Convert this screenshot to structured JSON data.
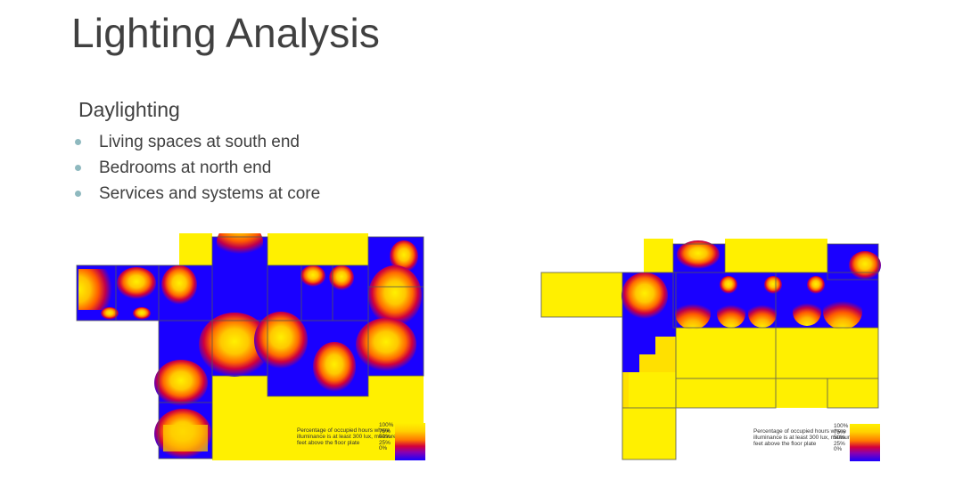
{
  "slide": {
    "title": "Lighting Analysis",
    "subtitle": "Daylighting",
    "bullets": [
      "Living spaces at south end",
      "Bedrooms at north end",
      "Services and systems at core"
    ]
  },
  "legend": {
    "description": "Percentage of occupied hours where illuminance is at least 300 lux, measure 4 feet above the floor plate",
    "ticks": [
      "100%",
      "75%",
      "50%",
      "25%",
      "0%"
    ]
  },
  "colors": {
    "yellow": "#fff000",
    "blue": "#1a00ff",
    "bullet": "#8fb9bf",
    "text": "#404040"
  }
}
